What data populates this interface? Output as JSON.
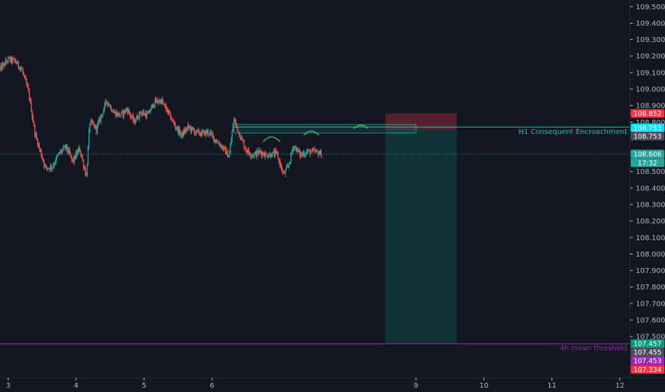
{
  "chart_data": {
    "type": "candlestick",
    "title": "",
    "xlabel": "",
    "ylabel": "",
    "ylim": [
      107.25,
      109.54
    ],
    "xlim": [
      2.88,
      12.15
    ],
    "y_ticks": [
      109.5,
      109.4,
      109.3,
      109.2,
      109.1,
      109.0,
      108.9,
      108.8,
      108.5,
      108.4,
      108.3,
      108.2,
      108.1,
      108.0,
      107.9,
      107.8,
      107.7,
      107.6,
      107.5
    ],
    "y_tick_labels": [
      "109.500",
      "109.400",
      "109.300",
      "109.200",
      "109.100",
      "109.000",
      "108.900",
      "108.800",
      "108.500",
      "108.400",
      "108.300",
      "108.200",
      "108.100",
      "108.000",
      "107.900",
      "107.800",
      "107.700",
      "107.600",
      "107.500"
    ],
    "x_ticks": [
      3,
      4,
      5,
      6,
      9,
      10,
      11,
      12
    ],
    "x_tick_labels": [
      "3",
      "4",
      "5",
      "6",
      "9",
      "10",
      "11",
      "12"
    ],
    "grid": false,
    "colors": {
      "up": "#26a69a",
      "down": "#ef5350",
      "background": "#131722",
      "text": "#b2b5be"
    },
    "price_path": [
      [
        2.88,
        109.12
      ],
      [
        3.0,
        109.18
      ],
      [
        3.1,
        109.17
      ],
      [
        3.2,
        109.12
      ],
      [
        3.3,
        108.98
      ],
      [
        3.4,
        108.72
      ],
      [
        3.55,
        108.52
      ],
      [
        3.65,
        108.53
      ],
      [
        3.75,
        108.61
      ],
      [
        3.85,
        108.65
      ],
      [
        3.95,
        108.56
      ],
      [
        4.05,
        108.64
      ],
      [
        4.15,
        108.47
      ],
      [
        4.2,
        108.8
      ],
      [
        4.3,
        108.76
      ],
      [
        4.45,
        108.93
      ],
      [
        4.55,
        108.86
      ],
      [
        4.65,
        108.84
      ],
      [
        4.75,
        108.88
      ],
      [
        4.85,
        108.8
      ],
      [
        4.95,
        108.86
      ],
      [
        5.05,
        108.84
      ],
      [
        5.15,
        108.92
      ],
      [
        5.25,
        108.93
      ],
      [
        5.35,
        108.86
      ],
      [
        5.45,
        108.78
      ],
      [
        5.55,
        108.72
      ],
      [
        5.65,
        108.77
      ],
      [
        5.75,
        108.74
      ],
      [
        5.85,
        108.73
      ],
      [
        5.95,
        108.74
      ],
      [
        6.05,
        108.69
      ],
      [
        6.15,
        108.65
      ],
      [
        6.25,
        108.59
      ],
      [
        6.32,
        108.82
      ],
      [
        6.4,
        108.73
      ],
      [
        6.5,
        108.63
      ],
      [
        6.6,
        108.6
      ],
      [
        6.7,
        108.62
      ],
      [
        6.8,
        108.6
      ],
      [
        6.95,
        108.61
      ],
      [
        7.05,
        108.48
      ],
      [
        7.12,
        108.53
      ],
      [
        7.2,
        108.66
      ],
      [
        7.3,
        108.6
      ],
      [
        7.4,
        108.62
      ],
      [
        7.5,
        108.62
      ],
      [
        7.6,
        108.61
      ],
      [
        7.62,
        108.59
      ]
    ],
    "horizontal_lines": [
      {
        "price": 108.77,
        "color": "#2bbbad",
        "label": "H1 Consequent Encroachment"
      },
      {
        "price": 107.455,
        "color": "#9c27b0",
        "label": "4h mean threshold"
      },
      {
        "price": 108.606,
        "color": "#26a69a",
        "label": ""
      }
    ],
    "fvg_zone": {
      "top": 108.785,
      "bottom": 108.733,
      "x_start": 6.32,
      "x_end": 9.0,
      "color": "#2bbbad"
    },
    "position": {
      "x_start": 8.55,
      "x_end": 9.6,
      "stop": 108.852,
      "entry": 108.753,
      "target": 107.457,
      "loss_color": "#f23645",
      "profit_color": "#089981"
    },
    "swing_arcs": [
      {
        "x_start": 6.75,
        "x_end": 7.0,
        "y_base": 108.68,
        "y_peak": 108.71
      },
      {
        "x_start": 7.35,
        "x_end": 7.57,
        "y_base": 108.72,
        "y_peak": 108.745
      },
      {
        "x_start": 8.08,
        "x_end": 8.3,
        "y_base": 108.76,
        "y_peak": 108.78
      }
    ],
    "price_badges": [
      {
        "price": 108.852,
        "text": "108.852",
        "bg": "#f23645",
        "fg": "#ffffff"
      },
      {
        "price": 108.765,
        "text": "108.753",
        "bg": "#00e5ff",
        "fg": "#131722"
      },
      {
        "price": 108.715,
        "text": "108.753",
        "bg": "#4a4e5a",
        "fg": "#ffffff"
      },
      {
        "price": 108.606,
        "text": "108.606",
        "bg": "#26a69a",
        "fg": "#ffffff"
      },
      {
        "price": 108.553,
        "text": "17:32",
        "bg": "#26a69a",
        "fg": "#ffffff"
      },
      {
        "price": 107.457,
        "text": "107.457",
        "bg": "#089981",
        "fg": "#ffffff"
      },
      {
        "price": 107.405,
        "text": "107.455",
        "bg": "#4a4e5a",
        "fg": "#ffffff"
      },
      {
        "price": 107.353,
        "text": "107.453",
        "bg": "#9c27b0",
        "fg": "#ffffff"
      },
      {
        "price": 107.3,
        "text": "107.334",
        "bg": "#f23645",
        "fg": "#ffffff"
      }
    ]
  }
}
